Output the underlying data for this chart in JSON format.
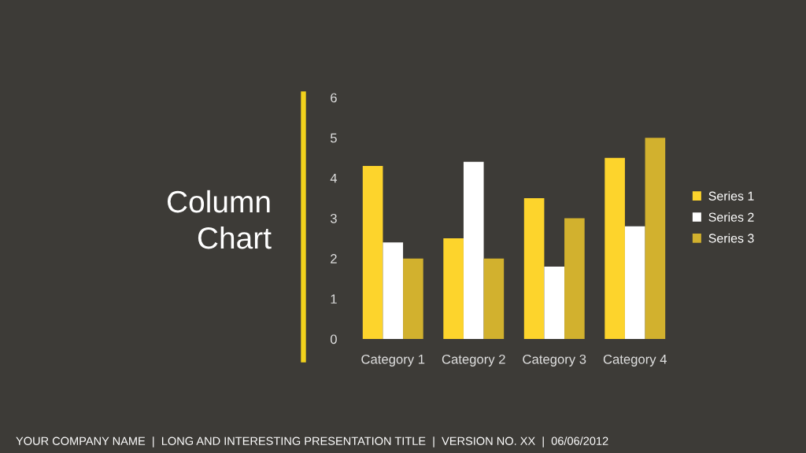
{
  "chart_data": {
    "type": "bar",
    "title": "Column\nChart",
    "categories": [
      "Category 1",
      "Category 2",
      "Category 3",
      "Category 4"
    ],
    "series": [
      {
        "name": "Series 1",
        "color": "#fdd42c",
        "values": [
          4.3,
          2.5,
          3.5,
          4.5
        ]
      },
      {
        "name": "Series 2",
        "color": "#ffffff",
        "values": [
          2.4,
          4.4,
          1.8,
          2.8
        ]
      },
      {
        "name": "Series 3",
        "color": "#d2b12e",
        "values": [
          2,
          2,
          3,
          5
        ]
      }
    ],
    "ylim": [
      0,
      6
    ],
    "yticks": [
      0,
      1,
      2,
      3,
      4,
      5,
      6
    ],
    "grid": false,
    "legend": "right",
    "annotations": [
      "YOUR COMPANY NAME  |  LONG AND INTERESTING PRESENTATION TITLE  |  VERSION NO. XX  |  06/06/2012"
    ]
  }
}
